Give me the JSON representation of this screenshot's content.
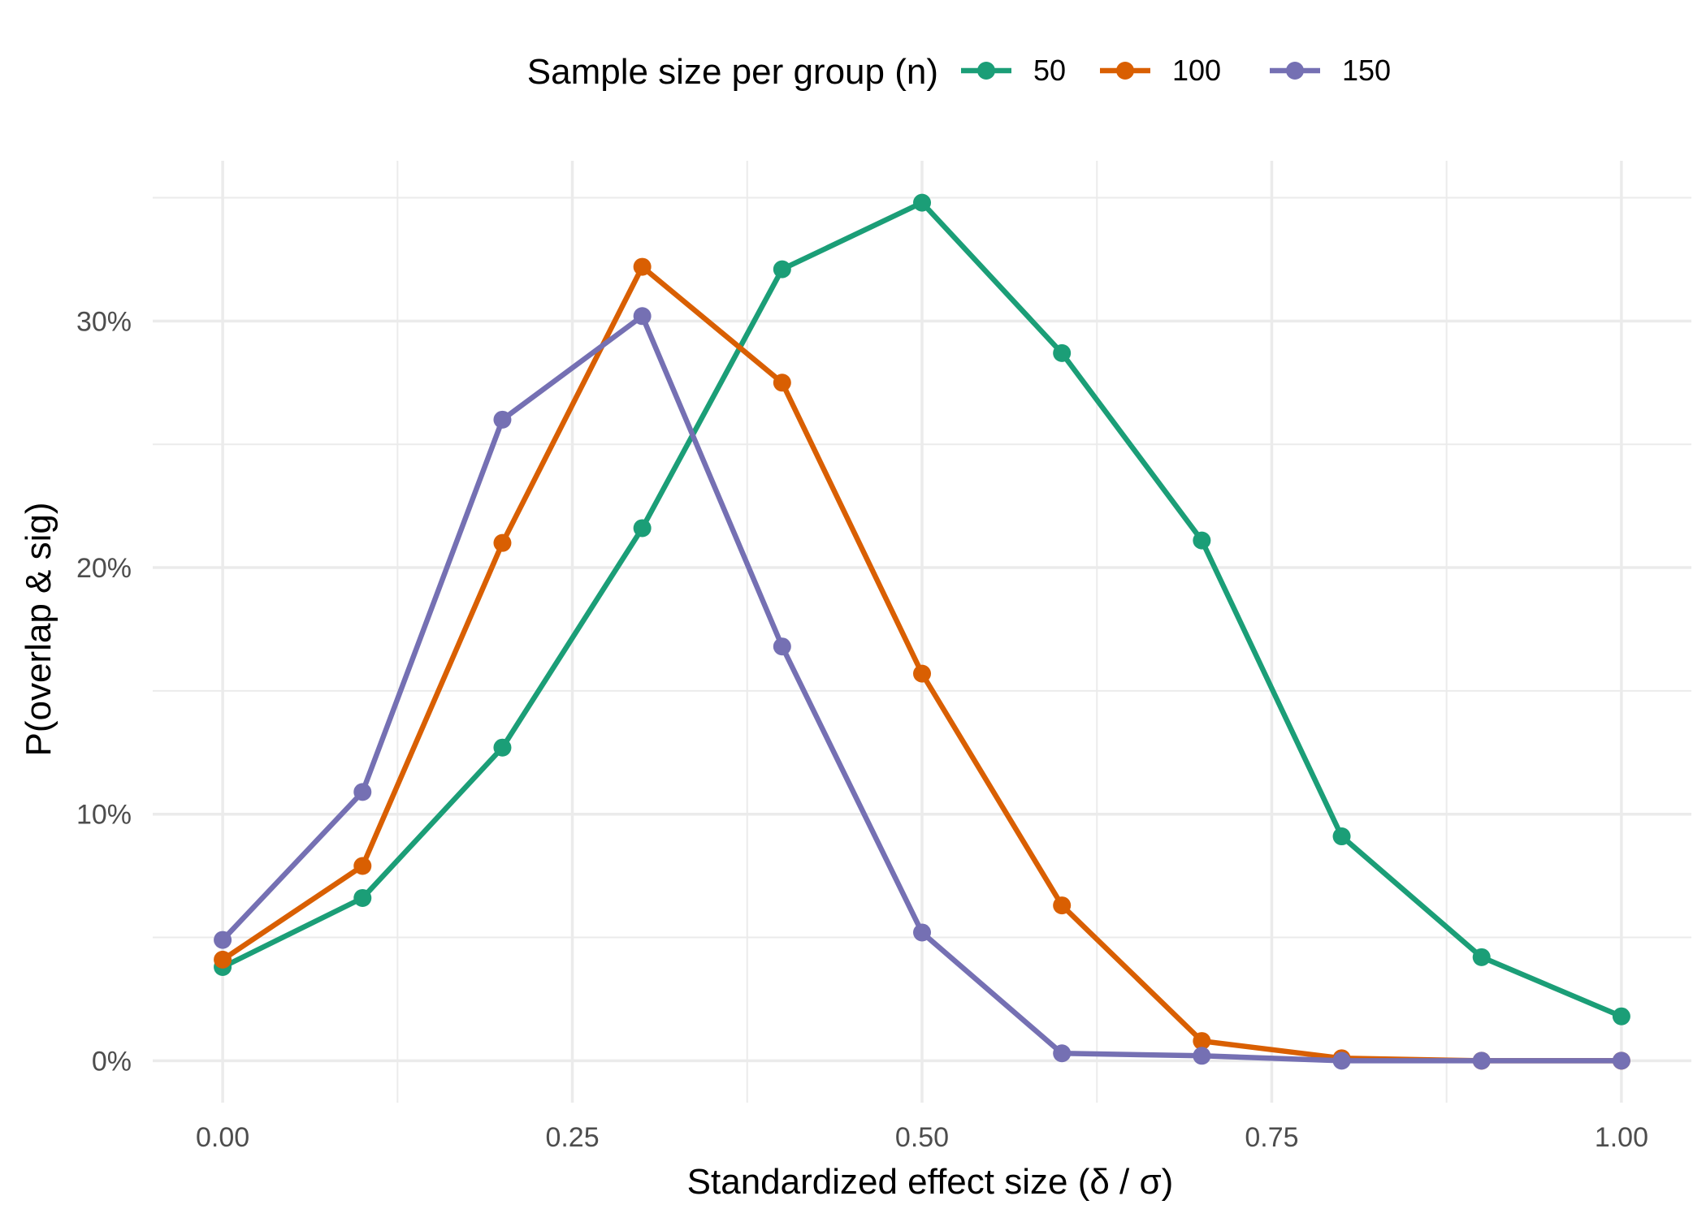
{
  "chart_data": {
    "type": "line",
    "title": "",
    "xlabel": "Standardized effect size (δ / σ)",
    "ylabel": "P(overlap & sig)",
    "xlim": [
      -0.05,
      1.05
    ],
    "ylim": [
      -0.017,
      0.365
    ],
    "x_ticks": [
      0.0,
      0.25,
      0.5,
      0.75,
      1.0
    ],
    "x_tick_labels": [
      "0.00",
      "0.25",
      "0.50",
      "0.75",
      "1.00"
    ],
    "y_ticks": [
      0.0,
      0.1,
      0.2,
      0.3
    ],
    "y_tick_labels": [
      "0%",
      "10%",
      "20%",
      "30%"
    ],
    "legend_title": "Sample size per group (n)",
    "legend_position": "top",
    "grid": true,
    "x": [
      0.0,
      0.1,
      0.2,
      0.3,
      0.4,
      0.5,
      0.6,
      0.7,
      0.8,
      0.9,
      1.0
    ],
    "series": [
      {
        "name": "50",
        "color": "#1b9e77",
        "values": [
          0.038,
          0.066,
          0.127,
          0.216,
          0.321,
          0.348,
          0.287,
          0.211,
          0.091,
          0.042,
          0.018
        ]
      },
      {
        "name": "100",
        "color": "#d95f02",
        "values": [
          0.041,
          0.079,
          0.21,
          0.322,
          0.275,
          0.157,
          0.063,
          0.008,
          0.001,
          0.0,
          0.0
        ]
      },
      {
        "name": "150",
        "color": "#7570b3",
        "values": [
          0.049,
          0.109,
          0.26,
          0.302,
          0.168,
          0.052,
          0.003,
          0.002,
          0.0,
          0.0,
          0.0
        ]
      }
    ]
  }
}
